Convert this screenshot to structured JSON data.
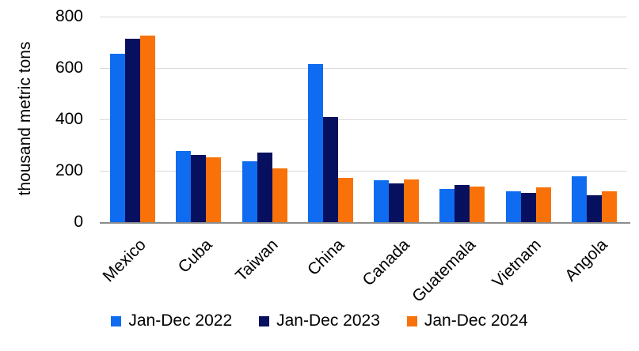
{
  "chart_data": {
    "type": "bar",
    "title": "",
    "xlabel": "",
    "ylabel": "thousand metric tons",
    "ylim": [
      0,
      800
    ],
    "yticks": [
      0,
      200,
      400,
      600,
      800
    ],
    "grid": true,
    "legend_position": "bottom",
    "categories": [
      "Mexico",
      "Cuba",
      "Taiwan",
      "China",
      "Canada",
      "Guatemala",
      "Vietnam",
      "Angola"
    ],
    "series": [
      {
        "name": "Jan-Dec 2022",
        "color": "#0f6cf0",
        "values": [
          655,
          277,
          236,
          616,
          162,
          128,
          119,
          179
        ]
      },
      {
        "name": "Jan-Dec 2023",
        "color": "#06105e",
        "values": [
          713,
          262,
          270,
          409,
          151,
          146,
          114,
          105
        ]
      },
      {
        "name": "Jan-Dec 2024",
        "color": "#f87209",
        "values": [
          727,
          253,
          209,
          172,
          165,
          139,
          134,
          120
        ]
      }
    ]
  },
  "colors": {
    "gridline": "#d9d9d9",
    "axis_line": "#8c8c8c",
    "text": "#000000",
    "background": "#ffffff"
  }
}
